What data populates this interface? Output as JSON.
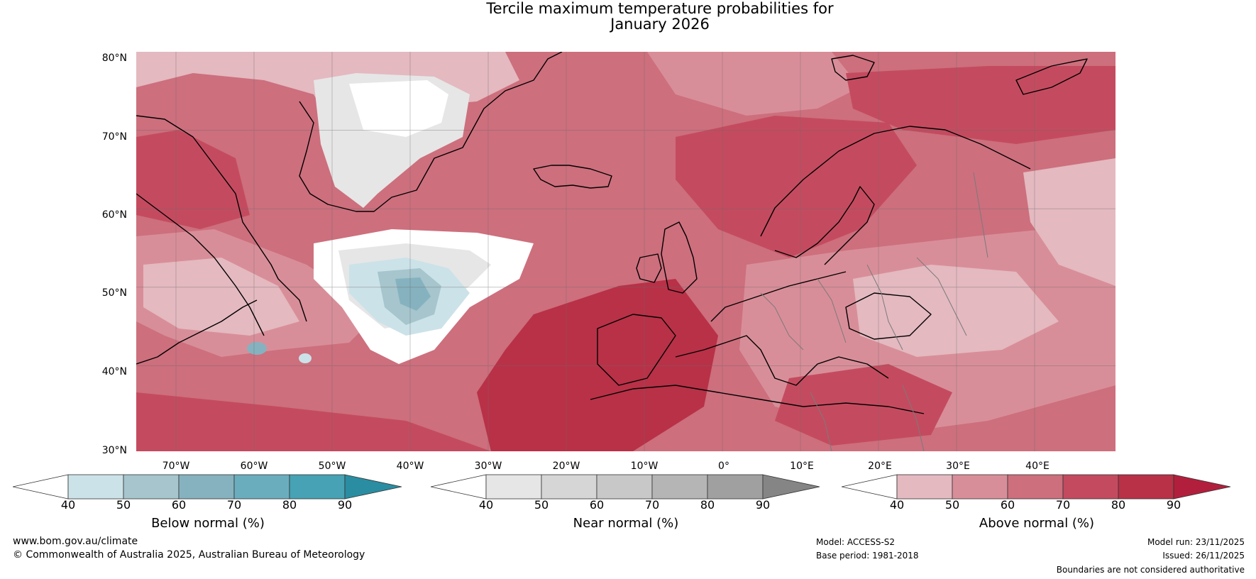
{
  "title_line1": "Tercile maximum temperature probabilities for",
  "title_line2": "January 2026",
  "lat_labels": [
    "80°N",
    "70°N",
    "60°N",
    "50°N",
    "40°N",
    "30°N"
  ],
  "lon_labels": [
    "70°W",
    "60°W",
    "50°W",
    "40°W",
    "30°W",
    "20°W",
    "10°W",
    "0°",
    "10°E",
    "20°E",
    "30°E",
    "40°E"
  ],
  "colorbars": {
    "below": {
      "label": "Below normal (%)",
      "ticks": [
        "40",
        "50",
        "60",
        "70",
        "80",
        "90"
      ],
      "colors": [
        "#ffffff",
        "#cbe2e8",
        "#a6c5cd",
        "#86b2bf",
        "#6aaebe",
        "#46a2b4",
        "#2a8da2"
      ]
    },
    "near": {
      "label": "Near normal (%)",
      "ticks": [
        "40",
        "50",
        "60",
        "70",
        "80",
        "90"
      ],
      "colors": [
        "#ffffff",
        "#e6e6e6",
        "#d6d6d6",
        "#c8c8c8",
        "#b5b5b5",
        "#a0a0a0",
        "#858585"
      ]
    },
    "above": {
      "label": "Above normal (%)",
      "ticks": [
        "40",
        "50",
        "60",
        "70",
        "80",
        "90"
      ],
      "colors": [
        "#ffffff",
        "#e4b9c0",
        "#d88e99",
        "#cd6f7d",
        "#c44b5f",
        "#b83147",
        "#b21f3c"
      ]
    }
  },
  "footer": {
    "website": "www.bom.gov.au/climate",
    "copyright": "© Commonwealth of Australia 2025, Australian Bureau of Meteorology",
    "model": "Model: ACCESS-S2",
    "base_period": "Base period: 1981-2018",
    "model_run": "Model run: 23/11/2025",
    "issued": "Issued: 26/11/2025",
    "disclaimer": "Boundaries are not considered authoritative"
  }
}
